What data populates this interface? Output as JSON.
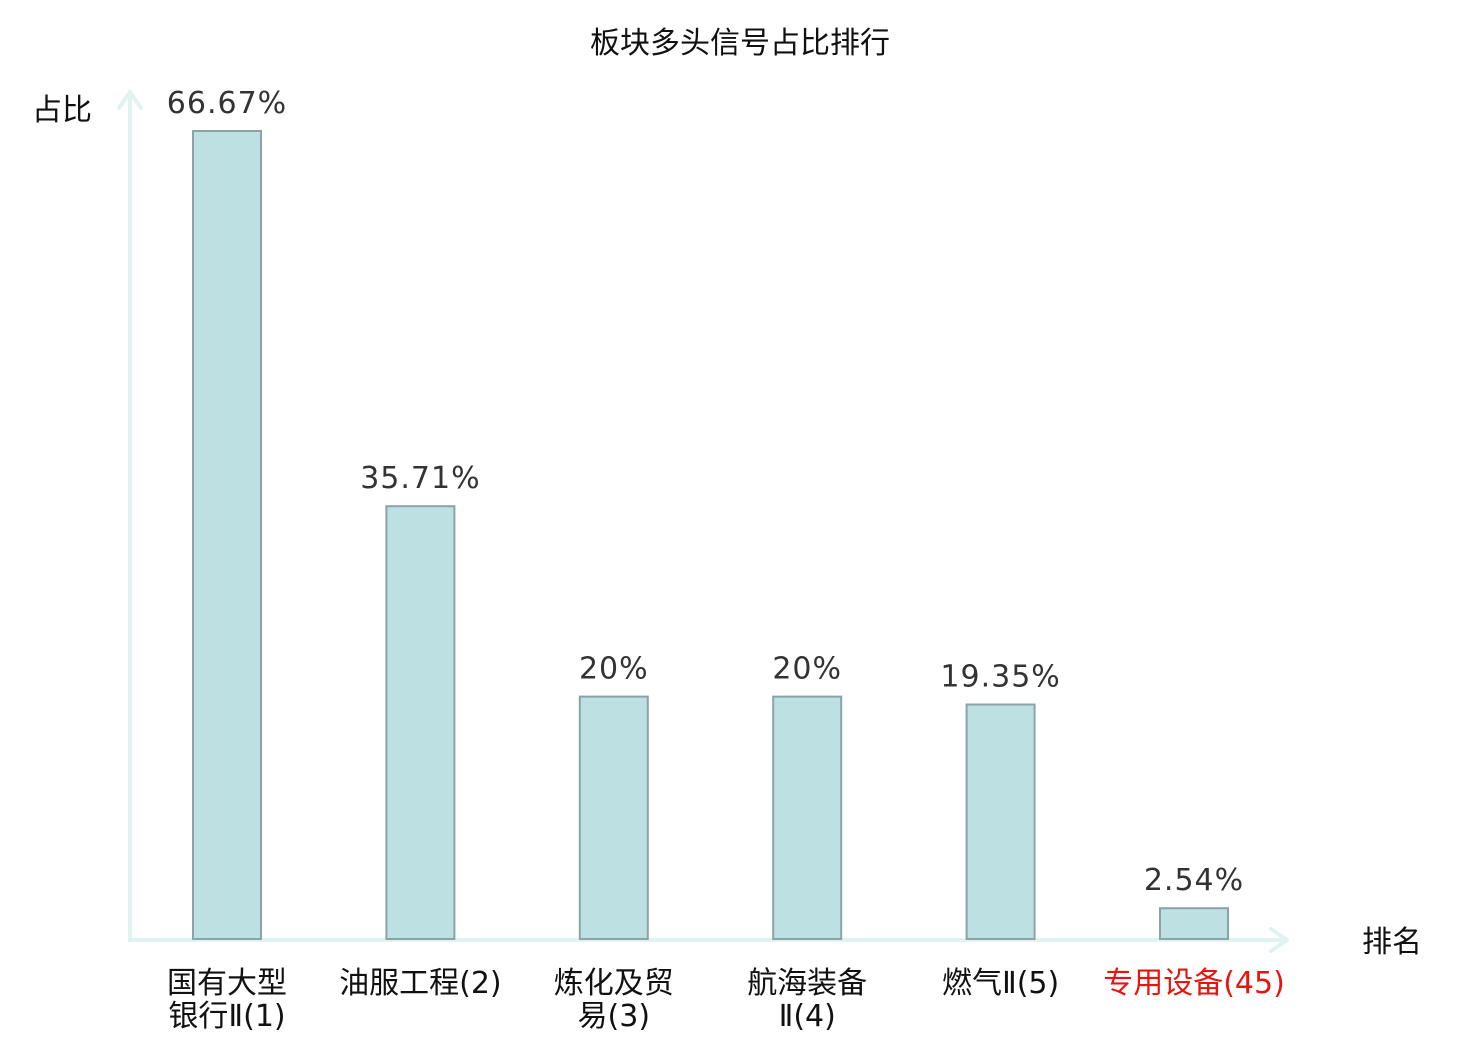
{
  "chart_data": {
    "type": "bar",
    "title": "板块多头信号占比排行",
    "ylabel": "占比",
    "xlabel": "排名",
    "categories": [
      {
        "lines": [
          "国有大型",
          "银行Ⅱ(1)"
        ],
        "highlight": false
      },
      {
        "lines": [
          "油服工程(2)"
        ],
        "highlight": false
      },
      {
        "lines": [
          "炼化及贸",
          "易(3)"
        ],
        "highlight": false
      },
      {
        "lines": [
          "航海装备",
          "Ⅱ(4)"
        ],
        "highlight": false
      },
      {
        "lines": [
          "燃气Ⅱ(5)"
        ],
        "highlight": false
      },
      {
        "lines": [
          "专用设备(45)"
        ],
        "highlight": true
      }
    ],
    "values": [
      66.67,
      35.71,
      20,
      20,
      19.35,
      2.54
    ],
    "value_labels": [
      "66.67%",
      "35.71%",
      "20%",
      "20%",
      "19.35%",
      "2.54%"
    ],
    "ylim": [
      0,
      66.67
    ],
    "grid": false,
    "colors": {
      "bar_fill": "#bde0e3",
      "bar_stroke": "#8aa3a6",
      "axis": "#e0f2f1",
      "text": "#333333",
      "title": "#111111",
      "highlight": "#e8150f"
    }
  }
}
